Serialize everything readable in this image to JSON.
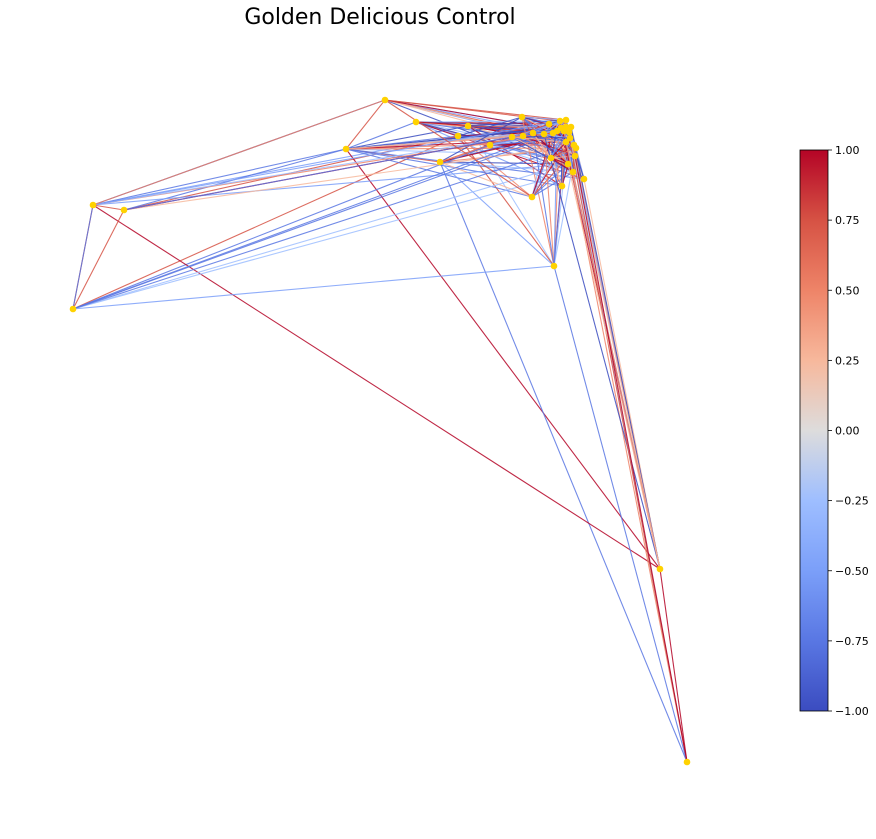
{
  "title": "Golden Delicious Control",
  "colors": {
    "node": "#FFD200",
    "colormap_low": "#3B4CC0",
    "colormap_mid": "#DDDDDD",
    "colormap_high": "#B40426"
  },
  "colorbar": {
    "min": -1.0,
    "max": 1.0,
    "ticks": [
      "1.00",
      "0.75",
      "0.50",
      "0.25",
      "0.00",
      "−0.25",
      "−0.50",
      "−0.75",
      "−1.00"
    ]
  }
}
